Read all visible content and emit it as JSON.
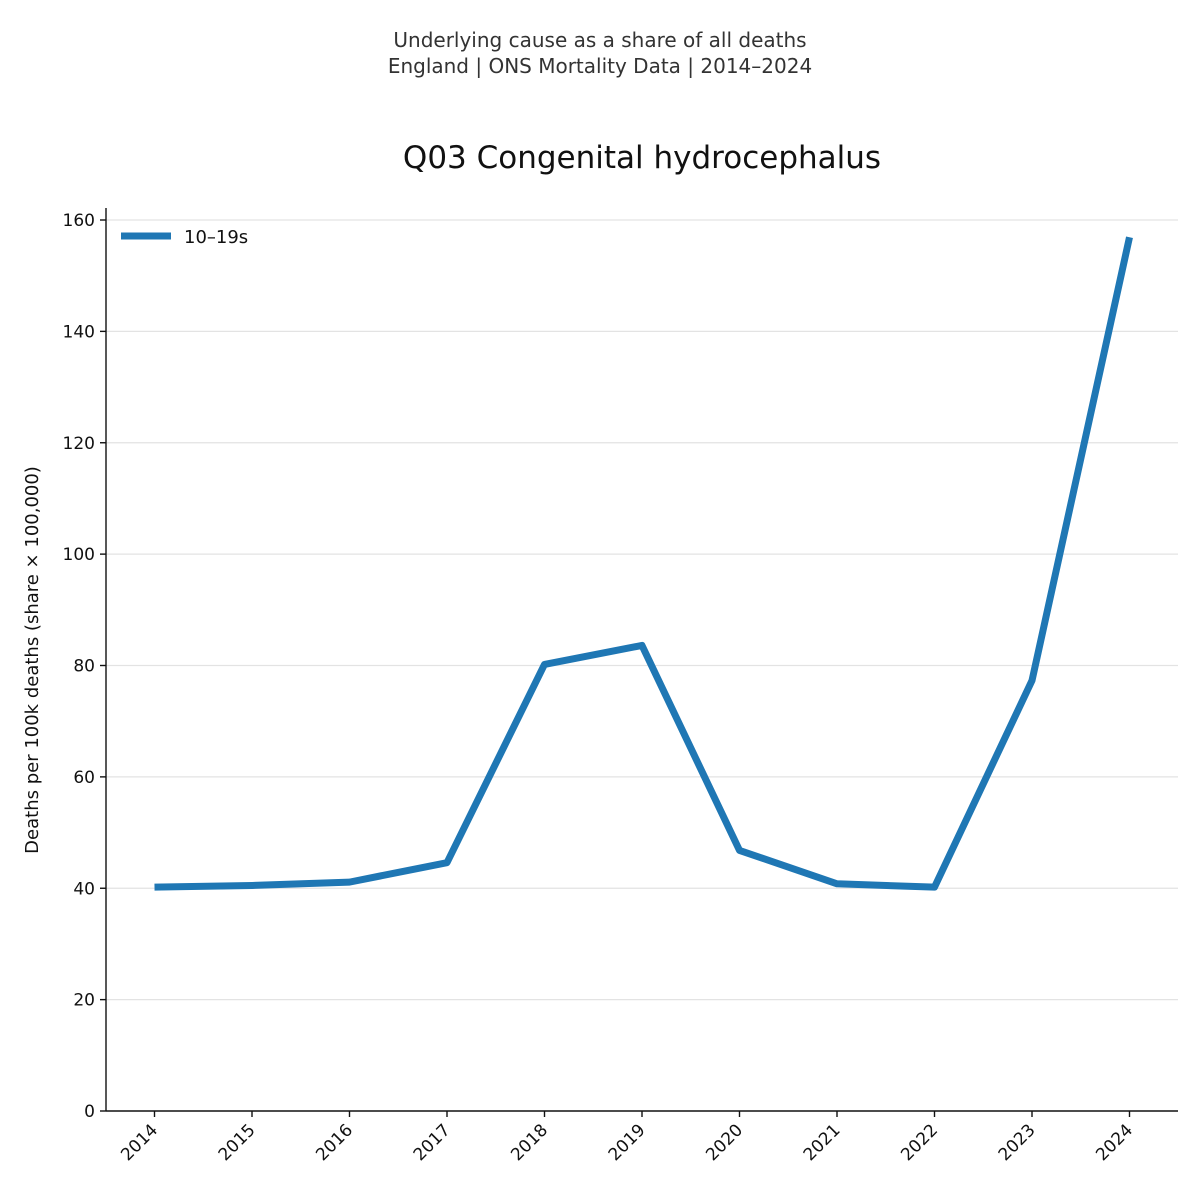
{
  "chart_data": {
    "type": "line",
    "suptitle_line1": "Underlying cause as a share of all deaths",
    "suptitle_line2": "England | ONS Mortality Data | 2014–2024",
    "title": "Q03 Congenital hydrocephalus",
    "xlabel": "",
    "ylabel": "Deaths per 100k deaths (share × 100,000)",
    "categories": [
      "2014",
      "2015",
      "2016",
      "2017",
      "2018",
      "2019",
      "2020",
      "2021",
      "2022",
      "2023",
      "2024"
    ],
    "series": [
      {
        "name": "10–19s",
        "color": "#1f77b4",
        "values": [
          40.2,
          40.5,
          41.1,
          44.6,
          80.2,
          83.6,
          46.8,
          40.8,
          40.2,
          77.3,
          156.9
        ]
      }
    ],
    "ylim": [
      0,
      160
    ],
    "yticks": [
      "0",
      "20",
      "40",
      "60",
      "80",
      "100",
      "120",
      "140",
      "160"
    ],
    "grid": "horizontal",
    "legend_position": "top-left"
  }
}
